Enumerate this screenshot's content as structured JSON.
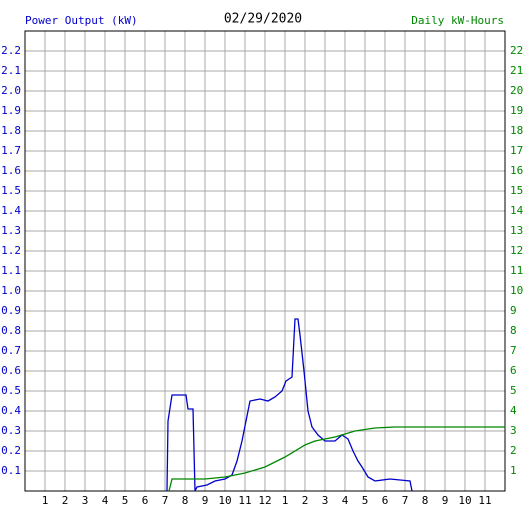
{
  "chart_data": {
    "type": "line",
    "title": "02/29/2020",
    "ylabel": "Power Output (kW)",
    "y2label": "Daily kW-Hours",
    "ylabel_color": "#0000cc",
    "y2label_color": "#008800",
    "grid": true,
    "xlim": [
      0,
      24
    ],
    "xticks": [
      1,
      2,
      3,
      4,
      5,
      6,
      7,
      8,
      9,
      10,
      11,
      12,
      {
        "value": 13,
        "label": "1"
      },
      {
        "value": 14,
        "label": "2"
      },
      {
        "value": 15,
        "label": "3"
      },
      {
        "value": 16,
        "label": "4"
      },
      {
        "value": 17,
        "label": "5"
      },
      {
        "value": 18,
        "label": "6"
      },
      {
        "value": 19,
        "label": "7"
      },
      {
        "value": 20,
        "label": "8"
      },
      {
        "value": 21,
        "label": "9"
      },
      {
        "value": 22,
        "label": "10"
      },
      {
        "value": 23,
        "label": "11"
      }
    ],
    "ylim": [
      0,
      2.3
    ],
    "yticks": [
      0.1,
      0.2,
      0.3,
      0.4,
      0.5,
      0.6,
      0.7,
      0.8,
      0.9,
      {
        "value": 1,
        "label": "1.0"
      },
      1.1,
      1.2,
      1.3,
      1.4,
      1.5,
      1.6,
      1.7,
      1.8,
      1.9,
      {
        "value": 2,
        "label": "2.0"
      },
      2.1,
      2.2
    ],
    "y2lim": [
      0,
      23
    ],
    "y2ticks": [
      1,
      2,
      3,
      4,
      5,
      6,
      7,
      8,
      9,
      10,
      11,
      12,
      13,
      14,
      15,
      16,
      17,
      18,
      19,
      20,
      21,
      22
    ],
    "series": [
      {
        "color": "#0000cc",
        "x": [
          7.1,
          7.15,
          7.35,
          8.05,
          8.15,
          8.4,
          8.5,
          8.6,
          9.1,
          9.5,
          10.0,
          10.35,
          10.6,
          10.85,
          11.05,
          11.25,
          11.75,
          12.15,
          12.5,
          12.85,
          13.05,
          13.35,
          13.5,
          13.65,
          13.75,
          13.95,
          14.15,
          14.35,
          14.65,
          15.0,
          15.5,
          15.85,
          16.15,
          16.4,
          16.65,
          16.85,
          17.15,
          17.5,
          18.25,
          19.25,
          19.35
        ],
        "values": [
          0,
          0.35,
          0.48,
          0.48,
          0.41,
          0.41,
          0,
          0.02,
          0.03,
          0.05,
          0.06,
          0.08,
          0.15,
          0.25,
          0.35,
          0.45,
          0.46,
          0.45,
          0.47,
          0.5,
          0.55,
          0.57,
          0.86,
          0.86,
          0.78,
          0.6,
          0.4,
          0.32,
          0.28,
          0.25,
          0.25,
          0.28,
          0.26,
          0.2,
          0.15,
          0.12,
          0.07,
          0.05,
          0.06,
          0.05,
          0
        ]
      },
      {
        "color": "#008800",
        "axis": "y2",
        "x": [
          7.2,
          7.35,
          9.0,
          10.0,
          11.0,
          12.0,
          13.0,
          14.0,
          14.5,
          15.5,
          16.5,
          17.5,
          18.5,
          24
        ],
        "values": [
          0,
          0.6,
          0.6,
          0.7,
          0.9,
          1.2,
          1.7,
          2.3,
          2.5,
          2.7,
          3.0,
          3.15,
          3.2,
          3.2
        ]
      }
    ]
  }
}
